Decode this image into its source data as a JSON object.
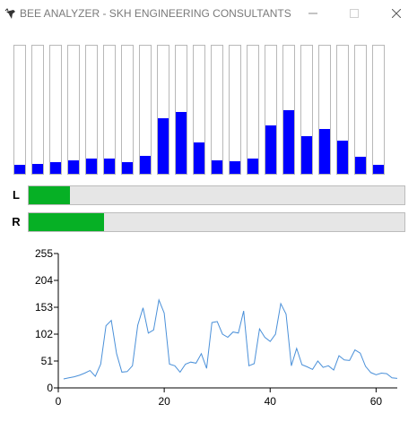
{
  "window": {
    "title": "BEE ANALYZER  - SKH ENGINEERING CONSULTANTS",
    "app_icon": "bee-icon",
    "controls": [
      "minimize-icon",
      "maximize-icon",
      "close-icon"
    ]
  },
  "spectrum": {
    "bar_color": "#0000ff",
    "max": 255,
    "levels": [
      17,
      19,
      24,
      27,
      31,
      30,
      23,
      35,
      111,
      123,
      62,
      27,
      25,
      30,
      97,
      127,
      75,
      90,
      66,
      34,
      17
    ]
  },
  "meters": {
    "fill_color": "#06b025",
    "left": {
      "label": "L",
      "level": 0.11
    },
    "right": {
      "label": "R",
      "level": 0.2
    }
  },
  "chart_data": {
    "type": "line",
    "color": "#4a90d9",
    "ylim": [
      0,
      255
    ],
    "xlim": [
      0,
      64
    ],
    "yticks": [
      "0",
      "51",
      "102",
      "153",
      "204",
      "255"
    ],
    "xticks": [
      "0",
      "20",
      "40",
      "60"
    ],
    "x": [
      1,
      2,
      3,
      4,
      5,
      6,
      7,
      8,
      9,
      10,
      11,
      12,
      13,
      14,
      15,
      16,
      17,
      18,
      19,
      20,
      21,
      22,
      23,
      24,
      25,
      26,
      27,
      28,
      29,
      30,
      31,
      32,
      33,
      34,
      35,
      36,
      37,
      38,
      39,
      40,
      41,
      42,
      43,
      44,
      45,
      46,
      47,
      48,
      49,
      50,
      51,
      52,
      53,
      54,
      55,
      56,
      57,
      58,
      59,
      60,
      61,
      62,
      63,
      64
    ],
    "y": [
      17,
      19,
      21,
      24,
      28,
      33,
      22,
      45,
      118,
      128,
      65,
      30,
      31,
      42,
      119,
      152,
      104,
      110,
      167,
      142,
      45,
      42,
      30,
      45,
      49,
      47,
      65,
      37,
      124,
      126,
      102,
      96,
      106,
      104,
      146,
      42,
      46,
      112,
      96,
      88,
      102,
      160,
      140,
      42,
      75,
      44,
      40,
      35,
      51,
      39,
      42,
      34,
      61,
      53,
      52,
      72,
      66,
      41,
      29,
      25,
      28,
      27,
      19,
      18
    ]
  }
}
